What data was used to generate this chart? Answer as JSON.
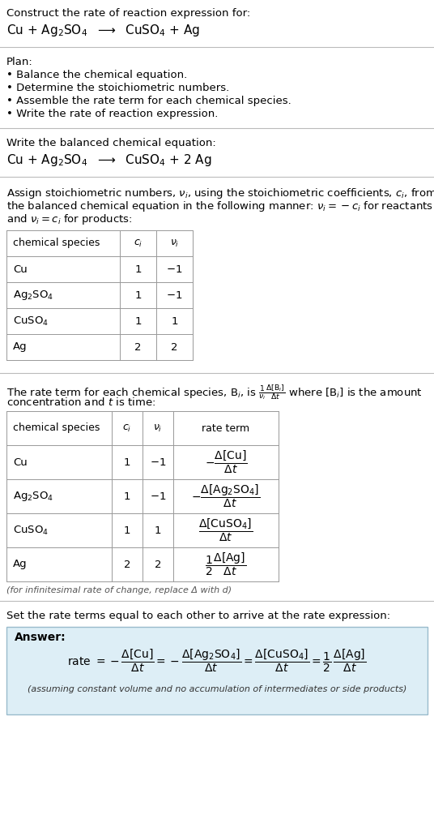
{
  "bg_color": "#ffffff",
  "answer_bg_color": "#ddeef6",
  "answer_border_color": "#99bbcc",
  "title_text": "Construct the rate of reaction expression for:",
  "plan_title": "Plan:",
  "plan_items": [
    "• Balance the chemical equation.",
    "• Determine the stoichiometric numbers.",
    "• Assemble the rate term for each chemical species.",
    "• Write the rate of reaction expression."
  ],
  "balanced_label": "Write the balanced chemical equation:",
  "stoich_intro_lines": [
    "Assign stoichiometric numbers, $\\nu_i$, using the stoichiometric coefficients, $c_i$, from",
    "the balanced chemical equation in the following manner: $\\nu_i = -c_i$ for reactants",
    "and $\\nu_i = c_i$ for products:"
  ],
  "rate_intro_line1": "The rate term for each chemical species, B$_i$, is $\\frac{1}{\\nu_i}\\frac{\\Delta[\\mathrm{B}_i]}{\\Delta t}$ where [B$_i$] is the amount",
  "rate_intro_line2": "concentration and $t$ is time:",
  "infinitesimal_note": "(for infinitesimal rate of change, replace Δ with d)",
  "set_equal_text": "Set the rate terms equal to each other to arrive at the rate expression:",
  "answer_label": "Answer:",
  "answer_note": "(assuming constant volume and no accumulation of intermediates or side products)"
}
